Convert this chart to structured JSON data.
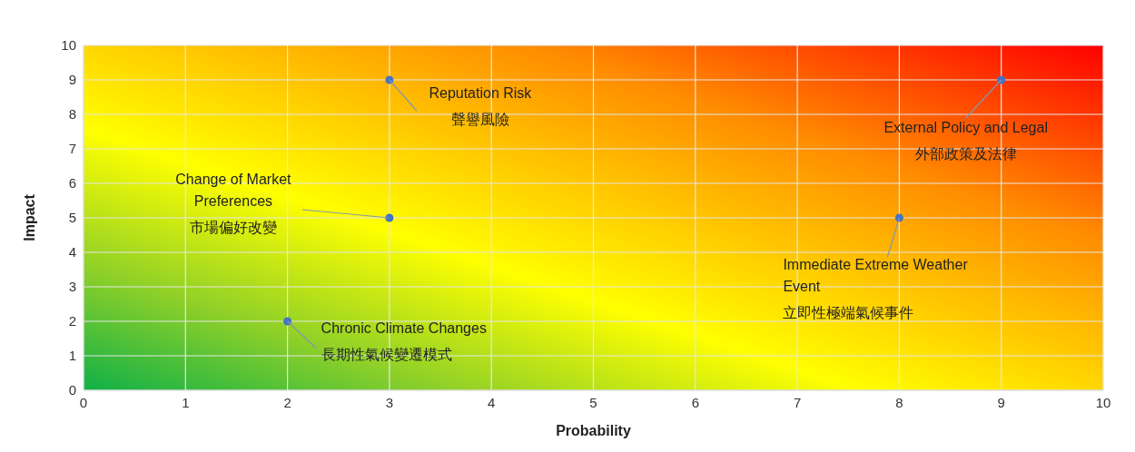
{
  "chart_data": {
    "type": "scatter",
    "xlabel": "Probability",
    "ylabel": "Impact",
    "x": [
      3,
      9,
      3,
      8,
      2
    ],
    "values": [
      9,
      9,
      5,
      5,
      2
    ],
    "color": "#4472c4",
    "xlim": [
      0,
      10
    ],
    "ylim": [
      0,
      10
    ],
    "xticks": [
      0,
      1,
      2,
      3,
      4,
      5,
      6,
      7,
      8,
      9,
      10
    ],
    "yticks": [
      0,
      1,
      2,
      3,
      4,
      5,
      6,
      7,
      8,
      9,
      10
    ],
    "grid": true,
    "legend": false,
    "marker": "circle",
    "annotations": [
      {
        "text": "Reputation Risk\n聲譽風險",
        "x": 3,
        "y": 9
      },
      {
        "text": "External Policy and Legal\n外部政策及法律",
        "x": 9,
        "y": 9
      },
      {
        "text": "Change of Market\nPreferences\n市場偏好改變",
        "x": 3,
        "y": 5
      },
      {
        "text": "Immediate Extreme Weather\nEvent\n立即性極端氣候事件",
        "x": 8,
        "y": 5
      },
      {
        "text": "Chronic Climate Changes\n長期性氣候變遷模式",
        "x": 2,
        "y": 2
      }
    ]
  }
}
